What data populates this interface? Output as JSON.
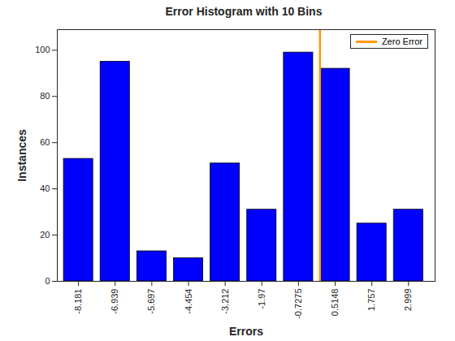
{
  "chart_data": {
    "type": "bar",
    "title": "Error Histogram with 10 Bins",
    "x_label": "Errors",
    "y_label": "Instances",
    "x": [
      -8.181,
      -6.939,
      -5.697,
      -4.454,
      -3.212,
      -1.97,
      -0.7275,
      0.5148,
      1.757,
      2.999
    ],
    "series": [
      {
        "type": "bar",
        "color": "#0000ff",
        "values": [
          53,
          95,
          13,
          10,
          51,
          31,
          99,
          92,
          25,
          31
        ]
      },
      {
        "name": "Zero Error",
        "type": "line",
        "color": "#ff9900",
        "x": [
          0,
          0
        ],
        "values": [
          0,
          108.9
        ]
      }
    ],
    "xlim": [
      -8.9,
      3.9
    ],
    "xticks": [
      -8.181,
      -6.939,
      -5.697,
      -4.454,
      -3.212,
      -1.97,
      -0.7275,
      0.5148,
      1.757,
      2.999
    ],
    "ylim": [
      0,
      108.9
    ],
    "yticks": [
      0,
      20,
      40,
      60,
      80,
      100
    ],
    "grid": false,
    "legend": "northeast"
  }
}
